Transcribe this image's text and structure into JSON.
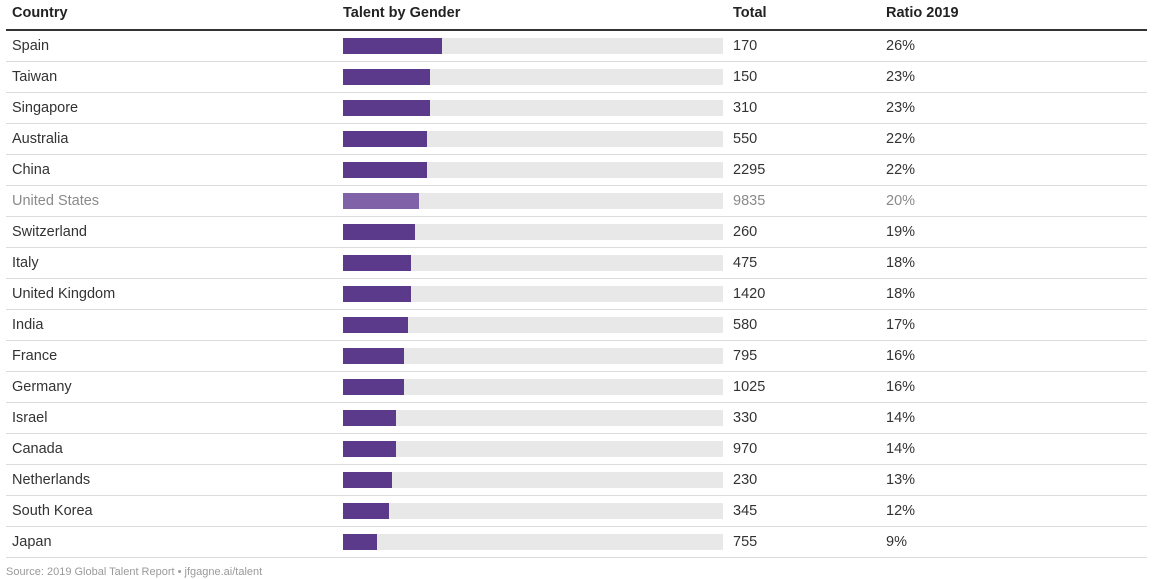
{
  "columns": {
    "country": "Country",
    "bar": "Talent by Gender",
    "total": "Total",
    "ratio": "Ratio 2019"
  },
  "colors": {
    "bar": "#5b3a8c",
    "bar_highlight": "#7f62a8",
    "track": "#e8e8e8"
  },
  "chart_data": {
    "type": "bar",
    "orientation": "horizontal",
    "value_max": 100,
    "categories": [
      "Spain",
      "Taiwan",
      "Singapore",
      "Australia",
      "China",
      "United States",
      "Switzerland",
      "Italy",
      "United Kingdom",
      "India",
      "France",
      "Germany",
      "Israel",
      "Canada",
      "Netherlands",
      "South Korea",
      "Japan"
    ],
    "values": [
      26,
      23,
      23,
      22,
      22,
      20,
      19,
      18,
      18,
      17,
      16,
      16,
      14,
      14,
      13,
      12,
      9
    ],
    "rows": [
      {
        "country": "Spain",
        "total": "170",
        "ratio": "26%",
        "value": 26
      },
      {
        "country": "Taiwan",
        "total": "150",
        "ratio": "23%",
        "value": 23
      },
      {
        "country": "Singapore",
        "total": "310",
        "ratio": "23%",
        "value": 23
      },
      {
        "country": "Australia",
        "total": "550",
        "ratio": "22%",
        "value": 22
      },
      {
        "country": "China",
        "total": "2295",
        "ratio": "22%",
        "value": 22
      },
      {
        "country": "United States",
        "total": "9835",
        "ratio": "20%",
        "value": 20,
        "highlight": true
      },
      {
        "country": "Switzerland",
        "total": "260",
        "ratio": "19%",
        "value": 19
      },
      {
        "country": "Italy",
        "total": "475",
        "ratio": "18%",
        "value": 18
      },
      {
        "country": "United Kingdom",
        "total": "1420",
        "ratio": "18%",
        "value": 18
      },
      {
        "country": "India",
        "total": "580",
        "ratio": "17%",
        "value": 17
      },
      {
        "country": "France",
        "total": "795",
        "ratio": "16%",
        "value": 16
      },
      {
        "country": "Germany",
        "total": "1025",
        "ratio": "16%",
        "value": 16
      },
      {
        "country": "Israel",
        "total": "330",
        "ratio": "14%",
        "value": 14
      },
      {
        "country": "Canada",
        "total": "970",
        "ratio": "14%",
        "value": 14
      },
      {
        "country": "Netherlands",
        "total": "230",
        "ratio": "13%",
        "value": 13
      },
      {
        "country": "South Korea",
        "total": "345",
        "ratio": "12%",
        "value": 12
      },
      {
        "country": "Japan",
        "total": "755",
        "ratio": "9%",
        "value": 9
      }
    ]
  },
  "source": "Source: 2019 Global Talent Report • jfgagne.ai/talent"
}
